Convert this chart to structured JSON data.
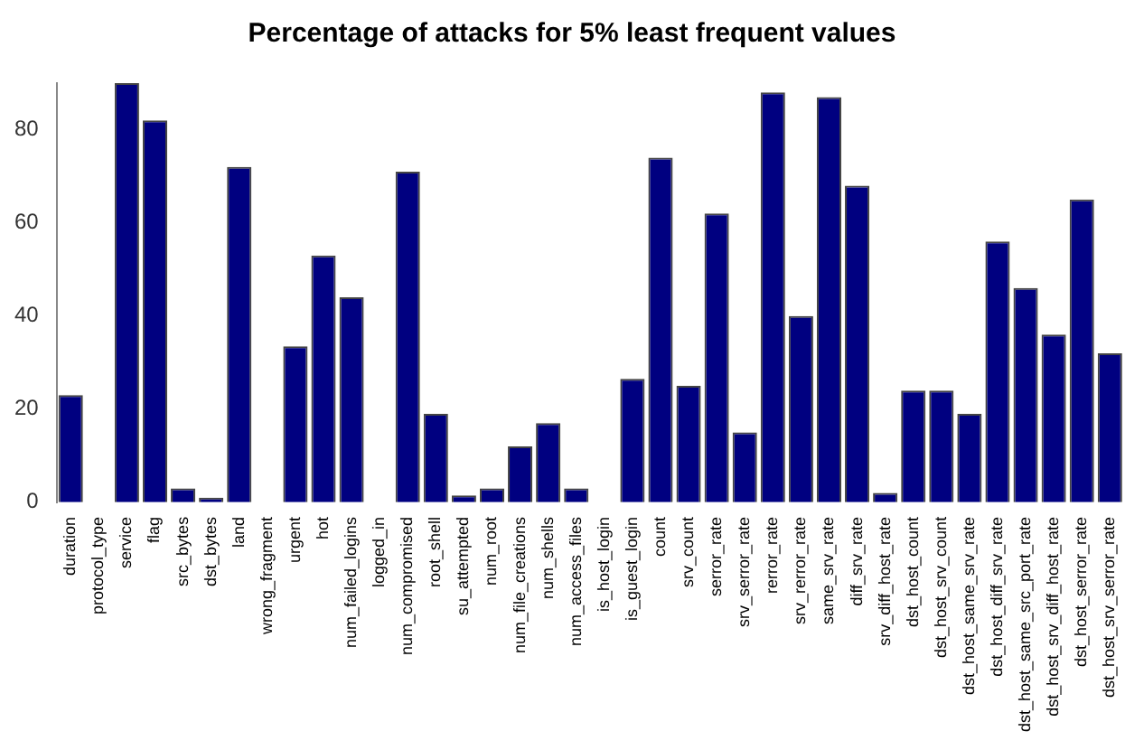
{
  "chart_data": {
    "type": "bar",
    "title": "Percentage of attacks for 5% least frequent values",
    "categories": [
      "duration",
      "protocol_type",
      "service",
      "flag",
      "src_bytes",
      "dst_bytes",
      "land",
      "wrong_fragment",
      "urgent",
      "hot",
      "num_failed_logins",
      "logged_in",
      "num_compromised",
      "root_shell",
      "su_attempted",
      "num_root",
      "num_file_creations",
      "num_shells",
      "num_access_files",
      "is_host_login",
      "is_guest_login",
      "count",
      "srv_count",
      "serror_rate",
      "srv_serror_rate",
      "rerror_rate",
      "srv_rerror_rate",
      "same_srv_rate",
      "diff_srv_rate",
      "srv_diff_host_rate",
      "dst_host_count",
      "dst_host_srv_count",
      "dst_host_same_srv_rate",
      "dst_host_diff_srv_rate",
      "dst_host_same_src_port_rate",
      "dst_host_srv_diff_host_rate",
      "dst_host_serror_rate",
      "dst_host_srv_serror_rate"
    ],
    "values": [
      23,
      0,
      90,
      82,
      3,
      1,
      72,
      0,
      33.5,
      53,
      44,
      0,
      71,
      19,
      1.5,
      3,
      12,
      17,
      3,
      0,
      26.5,
      74,
      25,
      62,
      15,
      88,
      40,
      87,
      68,
      2,
      24,
      24,
      19,
      56,
      46,
      36,
      65,
      32
    ],
    "color": "#000080",
    "ylim": [
      0,
      90
    ],
    "yticks": [
      0,
      20,
      40,
      60,
      80
    ],
    "grid": false,
    "legend": false
  }
}
